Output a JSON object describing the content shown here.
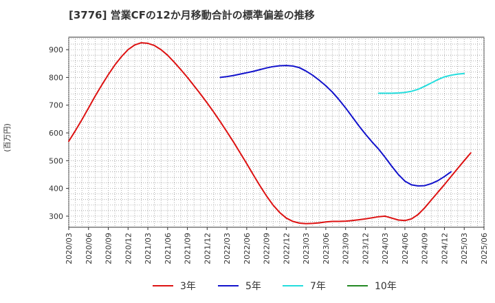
{
  "chart_data": {
    "type": "line",
    "title": "[3776]  営業CFの12か月移動合計の標準偏差の推移",
    "ylabel": "(百万円)",
    "xlabel": "",
    "ylim": [
      260,
      945
    ],
    "yticks": [
      300,
      400,
      500,
      600,
      700,
      800,
      900
    ],
    "x_ticks": [
      "2020/03",
      "2020/06",
      "2020/09",
      "2020/12",
      "2021/03",
      "2021/06",
      "2021/09",
      "2021/12",
      "2022/03",
      "2022/06",
      "2022/09",
      "2022/12",
      "2023/03",
      "2023/06",
      "2023/09",
      "2023/12",
      "2024/03",
      "2024/06",
      "2024/09",
      "2024/12",
      "2025/03",
      "2025/06"
    ],
    "grid": true,
    "legend_position": "bottom",
    "series": [
      {
        "name": "3年",
        "color": "#dd1111",
        "points": [
          [
            "2020/03",
            570
          ],
          [
            "2020/04",
            608
          ],
          [
            "2020/05",
            648
          ],
          [
            "2020/06",
            690
          ],
          [
            "2020/07",
            732
          ],
          [
            "2020/08",
            772
          ],
          [
            "2020/09",
            810
          ],
          [
            "2020/10",
            845
          ],
          [
            "2020/11",
            875
          ],
          [
            "2020/12",
            900
          ],
          [
            "2021/01",
            917
          ],
          [
            "2021/02",
            925
          ],
          [
            "2021/03",
            923
          ],
          [
            "2021/04",
            915
          ],
          [
            "2021/05",
            900
          ],
          [
            "2021/06",
            880
          ],
          [
            "2021/07",
            855
          ],
          [
            "2021/08",
            828
          ],
          [
            "2021/09",
            800
          ],
          [
            "2021/10",
            770
          ],
          [
            "2021/11",
            740
          ],
          [
            "2021/12",
            708
          ],
          [
            "2022/01",
            675
          ],
          [
            "2022/02",
            640
          ],
          [
            "2022/03",
            604
          ],
          [
            "2022/04",
            567
          ],
          [
            "2022/05",
            528
          ],
          [
            "2022/06",
            489
          ],
          [
            "2022/07",
            449
          ],
          [
            "2022/08",
            410
          ],
          [
            "2022/09",
            373
          ],
          [
            "2022/10",
            340
          ],
          [
            "2022/11",
            313
          ],
          [
            "2022/12",
            293
          ],
          [
            "2023/01",
            281
          ],
          [
            "2023/02",
            275
          ],
          [
            "2023/03",
            273
          ],
          [
            "2023/04",
            274
          ],
          [
            "2023/05",
            276
          ],
          [
            "2023/06",
            279
          ],
          [
            "2023/07",
            281
          ],
          [
            "2023/08",
            281
          ],
          [
            "2023/09",
            282
          ],
          [
            "2023/10",
            284
          ],
          [
            "2023/11",
            287
          ],
          [
            "2023/12",
            290
          ],
          [
            "2024/01",
            294
          ],
          [
            "2024/02",
            298
          ],
          [
            "2024/03",
            300
          ],
          [
            "2024/04",
            293
          ],
          [
            "2024/05",
            286
          ],
          [
            "2024/06",
            284
          ],
          [
            "2024/07",
            290
          ],
          [
            "2024/08",
            306
          ],
          [
            "2024/09",
            330
          ],
          [
            "2024/10",
            358
          ],
          [
            "2024/11",
            386
          ],
          [
            "2024/12",
            414
          ],
          [
            "2025/01",
            443
          ],
          [
            "2025/02",
            472
          ],
          [
            "2025/03",
            500
          ],
          [
            "2025/04",
            528
          ]
        ]
      },
      {
        "name": "5年",
        "color": "#1111cc",
        "points": [
          [
            "2022/02",
            800
          ],
          [
            "2022/03",
            803
          ],
          [
            "2022/04",
            807
          ],
          [
            "2022/05",
            812
          ],
          [
            "2022/06",
            817
          ],
          [
            "2022/07",
            822
          ],
          [
            "2022/08",
            828
          ],
          [
            "2022/09",
            834
          ],
          [
            "2022/10",
            839
          ],
          [
            "2022/11",
            842
          ],
          [
            "2022/12",
            843
          ],
          [
            "2023/01",
            841
          ],
          [
            "2023/02",
            835
          ],
          [
            "2023/03",
            823
          ],
          [
            "2023/04",
            808
          ],
          [
            "2023/05",
            790
          ],
          [
            "2023/06",
            770
          ],
          [
            "2023/07",
            747
          ],
          [
            "2023/08",
            720
          ],
          [
            "2023/09",
            690
          ],
          [
            "2023/10",
            658
          ],
          [
            "2023/11",
            626
          ],
          [
            "2023/12",
            596
          ],
          [
            "2024/01",
            568
          ],
          [
            "2024/02",
            542
          ],
          [
            "2024/03",
            512
          ],
          [
            "2024/04",
            480
          ],
          [
            "2024/05",
            450
          ],
          [
            "2024/06",
            426
          ],
          [
            "2024/07",
            413
          ],
          [
            "2024/08",
            409
          ],
          [
            "2024/09",
            410
          ],
          [
            "2024/10",
            417
          ],
          [
            "2024/11",
            428
          ],
          [
            "2024/12",
            443
          ],
          [
            "2025/01",
            460
          ]
        ]
      },
      {
        "name": "7年",
        "color": "#22dddd",
        "points": [
          [
            "2024/02",
            743
          ],
          [
            "2024/03",
            743
          ],
          [
            "2024/04",
            743
          ],
          [
            "2024/05",
            744
          ],
          [
            "2024/06",
            746
          ],
          [
            "2024/07",
            750
          ],
          [
            "2024/08",
            757
          ],
          [
            "2024/09",
            768
          ],
          [
            "2024/10",
            780
          ],
          [
            "2024/11",
            792
          ],
          [
            "2024/12",
            802
          ],
          [
            "2025/01",
            808
          ],
          [
            "2025/02",
            812
          ],
          [
            "2025/03",
            814
          ]
        ]
      },
      {
        "name": "10年",
        "color": "#228822",
        "points": []
      }
    ]
  }
}
